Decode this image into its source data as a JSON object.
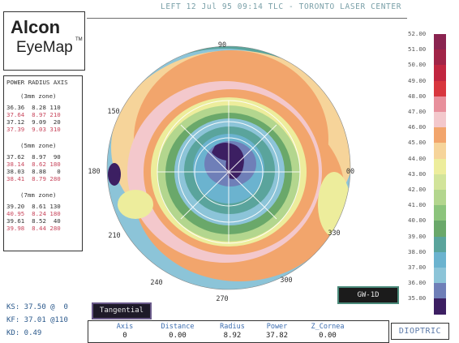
{
  "header": {
    "title": "LEFT 12 Jul 95 09:14 TLC - TORONTO LASER CENTER"
  },
  "logo": {
    "line1": "Alcon",
    "line2": "EyeMap",
    "tm": "TM"
  },
  "power_table": {
    "title": "POWER RADIUS AXIS",
    "zones": [
      {
        "label": "(3mm zone)",
        "rows": [
          {
            "text": "36.36  8.28 110",
            "color": "black"
          },
          {
            "text": "37.64  8.97 210",
            "color": "red"
          },
          {
            "text": "37.12  9.09  20",
            "color": "black"
          },
          {
            "text": "37.39  9.03 310",
            "color": "red"
          }
        ]
      },
      {
        "label": "(5mm zone)",
        "rows": [
          {
            "text": "37.62  8.97  90",
            "color": "black"
          },
          {
            "text": "38.14  8.62 180",
            "color": "red"
          },
          {
            "text": "38.03  8.88   0",
            "color": "black"
          },
          {
            "text": "38.41  8.79 280",
            "color": "red"
          }
        ]
      },
      {
        "label": "(7mm zone)",
        "rows": [
          {
            "text": "39.20  8.61 130",
            "color": "black"
          },
          {
            "text": "40.95  8.24 180",
            "color": "red"
          },
          {
            "text": "39.61  8.52  40",
            "color": "black"
          },
          {
            "text": "39.98  8.44 280",
            "color": "red"
          }
        ]
      }
    ]
  },
  "map": {
    "axis_labels": [
      "90",
      "150",
      "180",
      "00",
      "210",
      "330",
      "240",
      "270",
      "300"
    ]
  },
  "scale": {
    "entries": [
      {
        "label": "52.00",
        "color": "#8a2450"
      },
      {
        "label": "51.00",
        "color": "#a12447"
      },
      {
        "label": "50.00",
        "color": "#c12640"
      },
      {
        "label": "49.00",
        "color": "#d8363e"
      },
      {
        "label": "48.00",
        "color": "#e8909c"
      },
      {
        "label": "47.00",
        "color": "#f3c8cc"
      },
      {
        "label": "46.00",
        "color": "#f2a56c"
      },
      {
        "label": "45.00",
        "color": "#f6d49a"
      },
      {
        "label": "44.00",
        "color": "#eded9c"
      },
      {
        "label": "43.00",
        "color": "#d2e49a"
      },
      {
        "label": "42.00",
        "color": "#b3d68e"
      },
      {
        "label": "41.00",
        "color": "#8cc47c"
      },
      {
        "label": "40.00",
        "color": "#6aa86a"
      },
      {
        "label": "39.00",
        "color": "#5aa49c"
      },
      {
        "label": "38.00",
        "color": "#6bb3cf"
      },
      {
        "label": "37.00",
        "color": "#8cc4d8"
      },
      {
        "label": "36.00",
        "color": "#6f7fb8"
      },
      {
        "label": "35.00",
        "color": "#3c1f62"
      }
    ]
  },
  "badges": {
    "gw": "GW-1D",
    "tangential": "Tangential",
    "dioptric": "DIOPTRIC"
  },
  "keratometry": {
    "ks": "KS: 37.50 @  0",
    "kf": "KF: 37.01 @110",
    "kd": "KD: 0.49"
  },
  "cursor_readout": {
    "headers": [
      "Axis",
      "Distance",
      "Radius",
      "Power",
      "Z_Cornea"
    ],
    "values": [
      "0",
      "0.00",
      "8.92",
      "37.82",
      "0.00"
    ]
  }
}
